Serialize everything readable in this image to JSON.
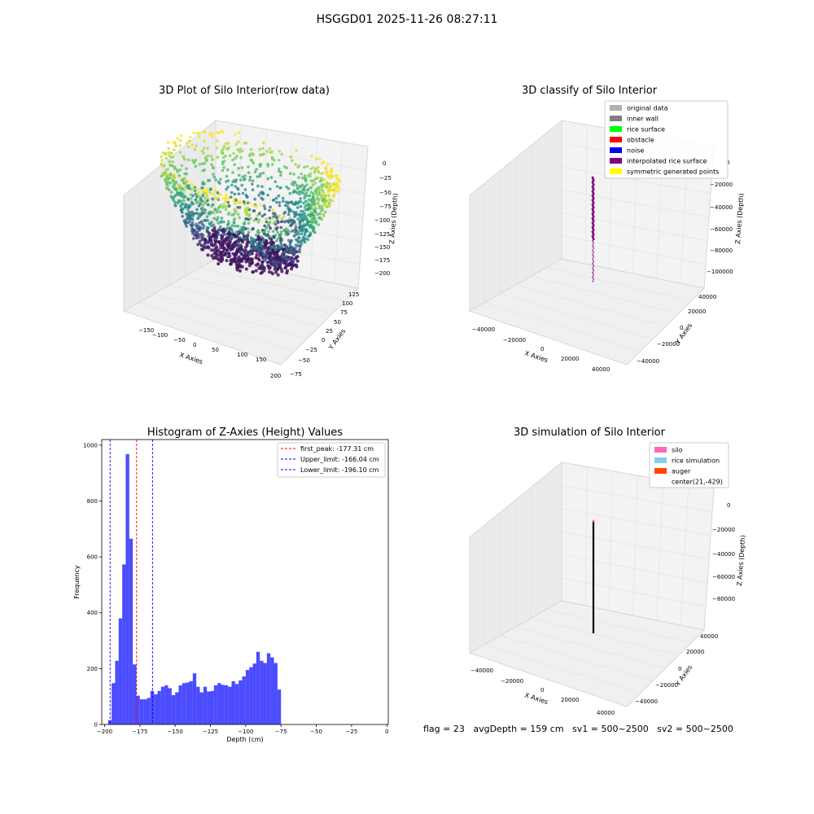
{
  "figure": {
    "title": "HSGGD01 2025-11-26 08:27:11"
  },
  "panel_raw": {
    "title": "3D Plot of Silo Interior(row data)",
    "xlabel": "X Axies",
    "ylabel": "Y Axies",
    "zlabel": "Z Axies (Depth)",
    "xticks": [
      "−150",
      "−100",
      "−50",
      "0",
      "50",
      "100",
      "150",
      "200"
    ],
    "yticks": [
      "−75",
      "−50",
      "−25",
      "0",
      "25",
      "50",
      "75",
      "100",
      "125"
    ],
    "zticks": [
      "0",
      "−25",
      "−50",
      "−75",
      "−100",
      "−125",
      "−150",
      "−175",
      "−200"
    ]
  },
  "panel_classify": {
    "title": "3D classify of Silo Interior",
    "xlabel": "X Axies",
    "ylabel": "Y Axies",
    "zlabel": "Z Axies (Depth)",
    "xticks": [
      "−40000",
      "−20000",
      "0",
      "20000",
      "40000"
    ],
    "yticks": [
      "−40000",
      "−20000",
      "0",
      "20000",
      "40000"
    ],
    "zticks": [
      "0",
      "−20000",
      "−40000",
      "−60000",
      "−80000",
      "−100000"
    ],
    "legend": [
      {
        "label": "original data",
        "color": "#b0b0b0"
      },
      {
        "label": "inner wall",
        "color": "#808080"
      },
      {
        "label": "rice surface",
        "color": "#00ff00"
      },
      {
        "label": "obstacle",
        "color": "#ff0000"
      },
      {
        "label": "noise",
        "color": "#0000ff"
      },
      {
        "label": "interpolated rice surface",
        "color": "#800080"
      },
      {
        "label": "symmetric generated points",
        "color": "#ffff00"
      }
    ]
  },
  "panel_sim": {
    "title": "3D simulation of Silo Interior",
    "xlabel": "X Axies",
    "ylabel": "Y Axies",
    "zlabel": "Z Axies (Depth)",
    "xticks": [
      "−40000",
      "−20000",
      "0",
      "20000",
      "40000"
    ],
    "yticks": [
      "−40000",
      "−20000",
      "0",
      "20000",
      "40000"
    ],
    "zticks": [
      "0",
      "−20000",
      "−40000",
      "−60000",
      "−80000"
    ],
    "legend": [
      {
        "label": "silo",
        "color": "#ff69b4",
        "patch": true
      },
      {
        "label": "rice simulation",
        "color": "#87ceeb",
        "patch": true
      },
      {
        "label": "auger",
        "color": "#ff4500",
        "patch": true
      },
      {
        "label": "center(21,-429)",
        "color": "#ffffff",
        "patch": false
      }
    ]
  },
  "status": {
    "text": "flag = 23   avgDepth = 159 cm   sv1 = 500~2500   sv2 = 500~2500"
  },
  "chart_data": {
    "type": "bar",
    "title": "Histogram of Z-Axies (Height) Values",
    "xlabel": "Depth (cm)",
    "ylabel": "Frequency",
    "xlim": [
      -202,
      1
    ],
    "ylim": [
      0,
      1020
    ],
    "xticks": [
      -200,
      -175,
      -150,
      -125,
      -100,
      -75,
      -50,
      -25,
      0
    ],
    "xtick_labels": [
      "−200",
      "−175",
      "−150",
      "−125",
      "−100",
      "−75",
      "−50",
      "−25",
      "0"
    ],
    "yticks": [
      0,
      200,
      400,
      600,
      800,
      1000
    ],
    "bin_start": -197.5,
    "bin_width": 2.5,
    "bar_color": "#0000ff",
    "values": [
      15,
      148,
      228,
      380,
      573,
      968,
      665,
      215,
      103,
      90,
      90,
      95,
      120,
      108,
      120,
      135,
      140,
      130,
      105,
      115,
      140,
      148,
      150,
      155,
      183,
      135,
      115,
      135,
      118,
      120,
      140,
      148,
      142,
      140,
      135,
      155,
      145,
      158,
      172,
      195,
      205,
      218,
      260,
      228,
      220,
      255,
      240,
      220,
      125
    ],
    "vlines": [
      {
        "label": "first_peak: -177.31 cm",
        "x": -177.31,
        "color": "#ff0000"
      },
      {
        "label": "Upper_limit: -166.04 cm",
        "x": -166.04,
        "color": "#0000ff"
      },
      {
        "label": "Lower_limit: -196.10 cm",
        "x": -196.1,
        "color": "#0000ff"
      }
    ],
    "legend_position": "upper right"
  }
}
